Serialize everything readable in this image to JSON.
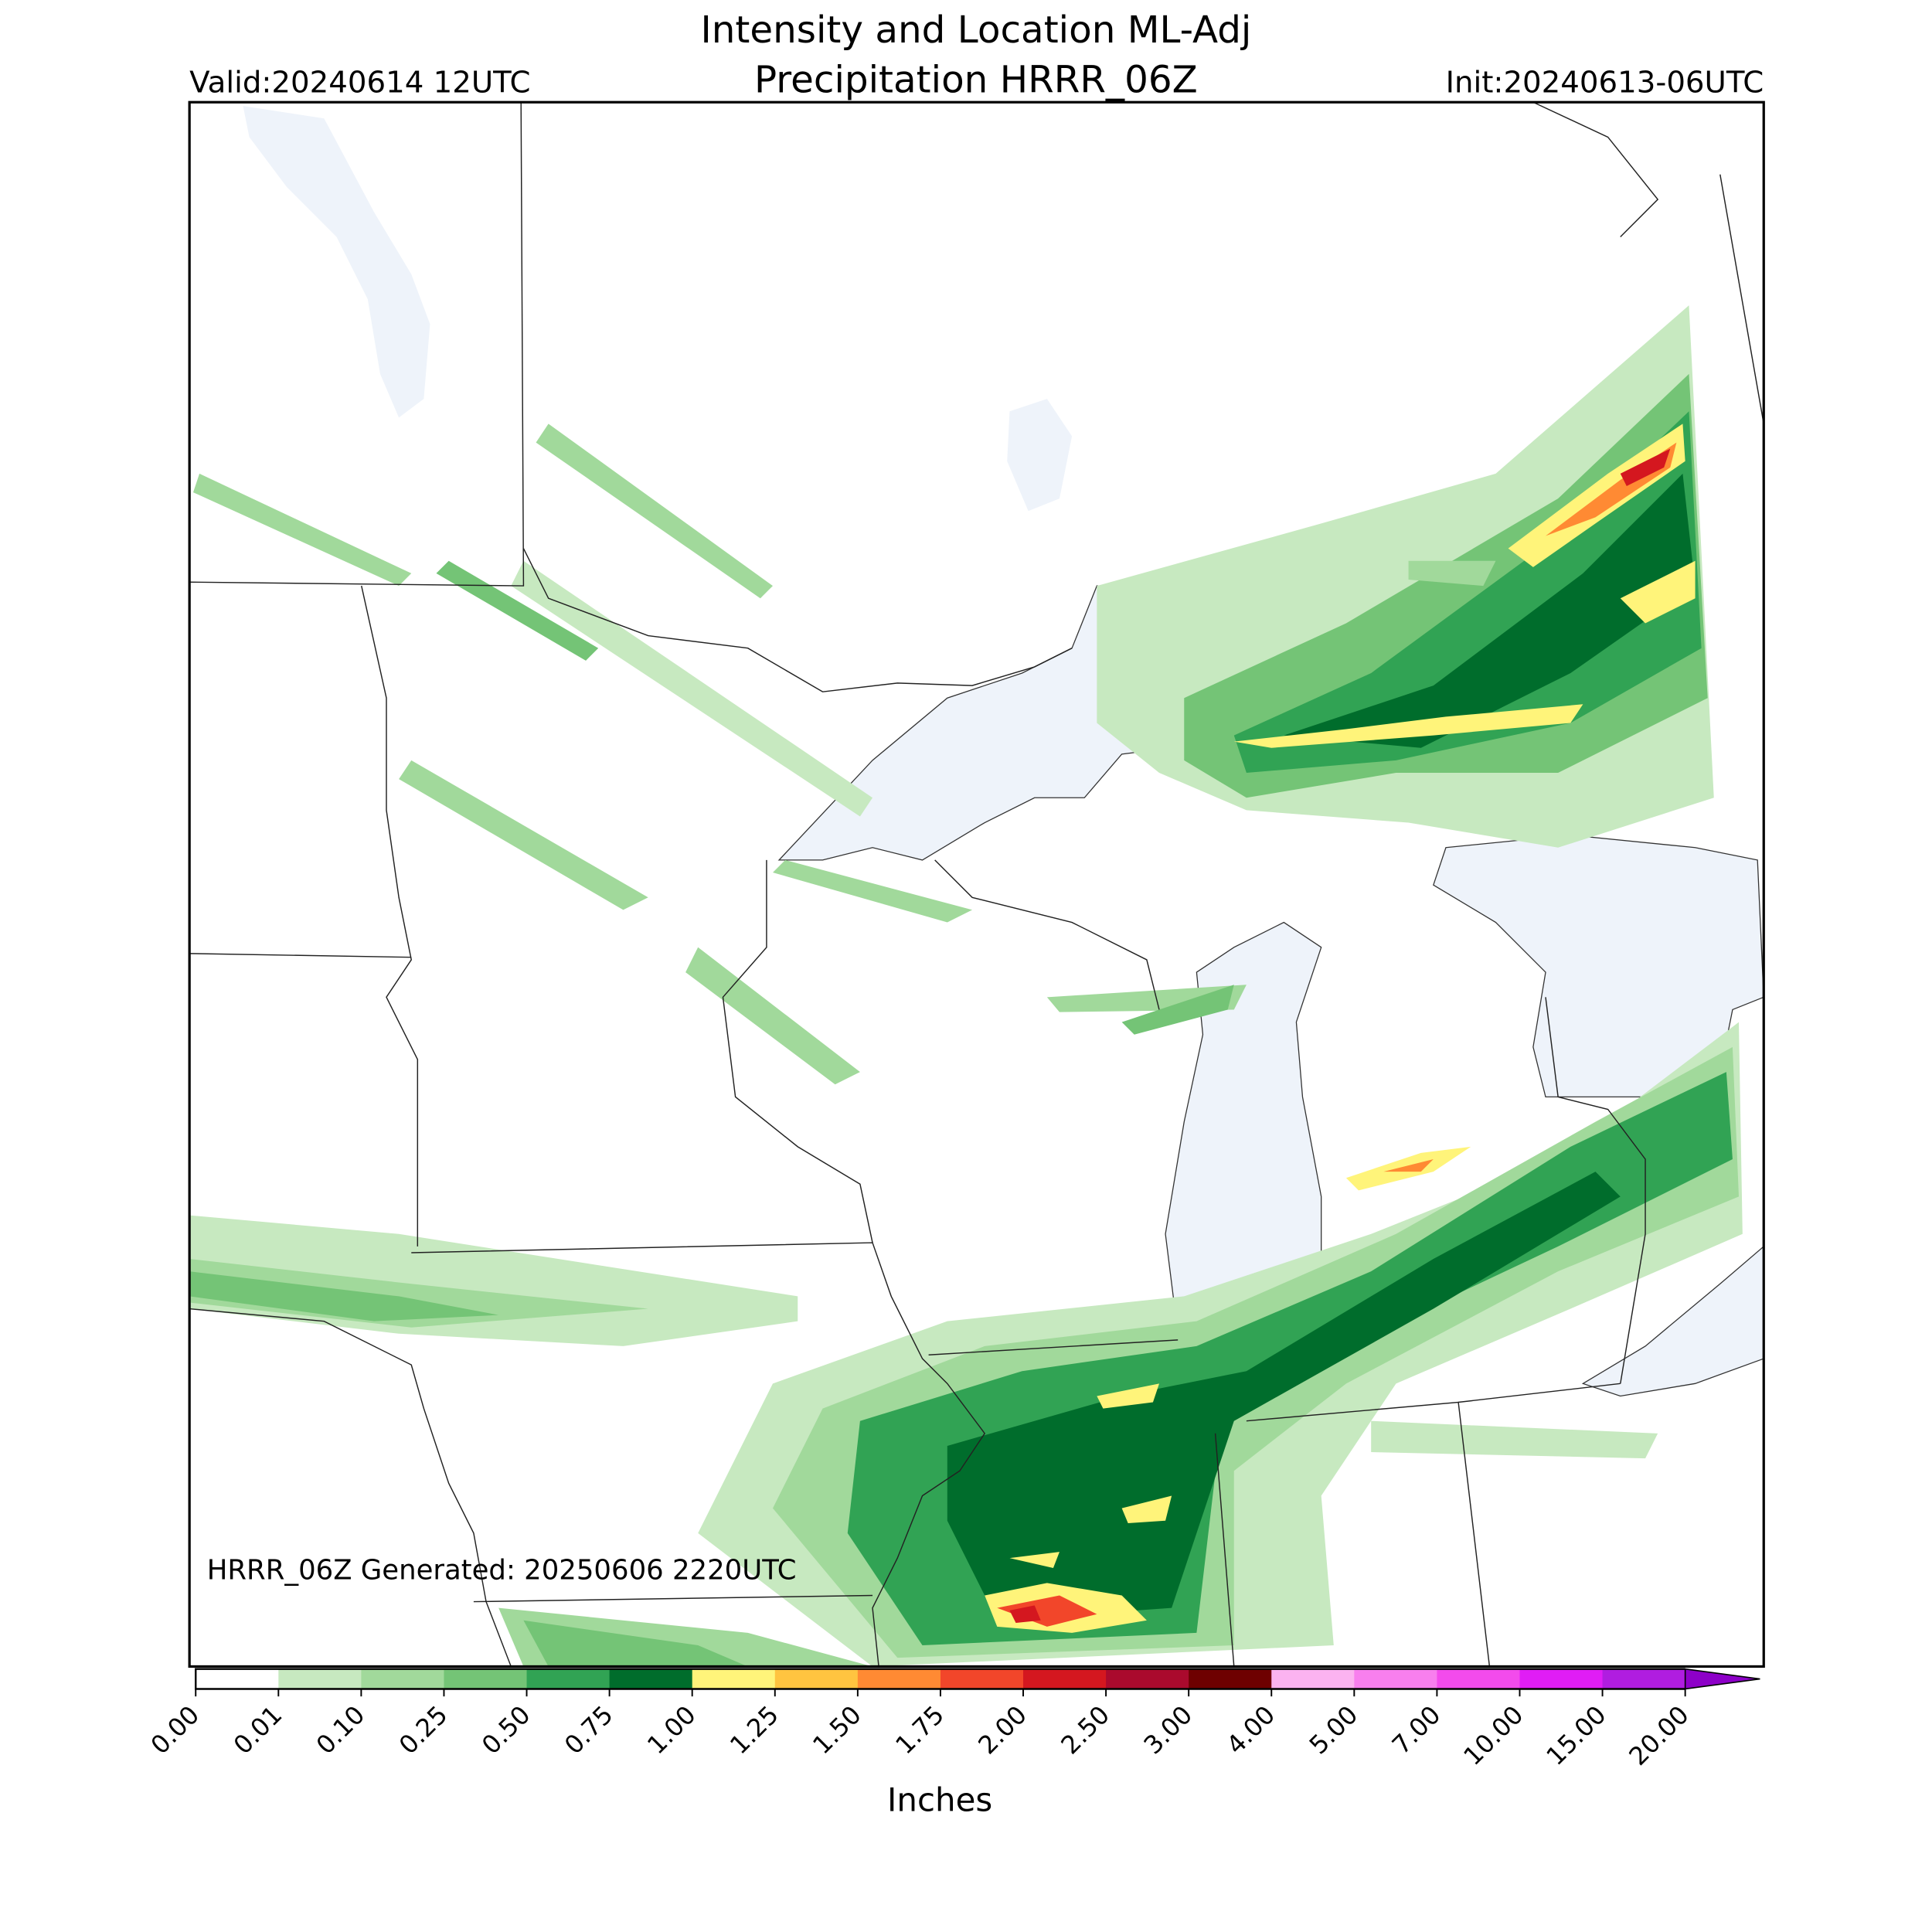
{
  "title": [
    "Intensity and Location ML-Adj",
    "Precipitation HRRR_06Z"
  ],
  "valid": "Valid:20240614 12UTC",
  "init": "Init:20240613-06UTC",
  "generated": "HRRR_06Z Generated: 20250606 2220UTC",
  "colorbar": {
    "label": "Inches",
    "ticks": [
      {
        "value": 0,
        "label": "0.00"
      },
      {
        "value": 0.01,
        "label": "0.01"
      },
      {
        "value": 0.1,
        "label": "0.10"
      },
      {
        "value": 0.25,
        "label": "0.25"
      },
      {
        "value": 0.5,
        "label": "0.50"
      },
      {
        "value": 0.75,
        "label": "0.75"
      },
      {
        "value": 1,
        "label": "1.00"
      },
      {
        "value": 1.25,
        "label": "1.25"
      },
      {
        "value": 1.5,
        "label": "1.50"
      },
      {
        "value": 1.75,
        "label": "1.75"
      },
      {
        "value": 2,
        "label": "2.00"
      },
      {
        "value": 2.5,
        "label": "2.50"
      },
      {
        "value": 3,
        "label": "3.00"
      },
      {
        "value": 4,
        "label": "4.00"
      },
      {
        "value": 5,
        "label": "5.00"
      },
      {
        "value": 7,
        "label": "7.00"
      },
      {
        "value": 10,
        "label": "10.00"
      },
      {
        "value": 15,
        "label": "15.00"
      },
      {
        "value": 20,
        "label": "20.00"
      }
    ],
    "colors": [
      "#ffffff",
      "#c7e9c0",
      "#a1d99b",
      "#74c476",
      "#31a354",
      "#006d2c",
      "#fff47a",
      "#ffc440",
      "#ff8a33",
      "#f2462a",
      "#d4171f",
      "#aa0a2d",
      "#6e0000",
      "#fbb3f0",
      "#f87fee",
      "#f34bec",
      "#e01df5",
      "#b01de0"
    ],
    "extend_color": "#8d00c8"
  }
}
